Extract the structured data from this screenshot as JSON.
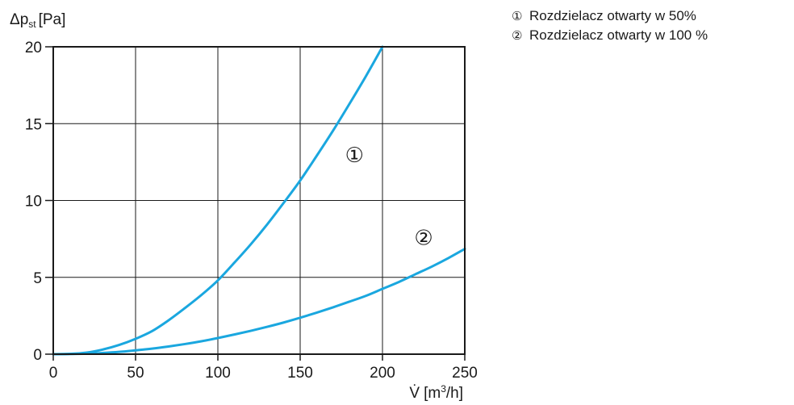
{
  "chart_data": {
    "type": "line",
    "title": "",
    "ylabel_symbol": "Δp",
    "ylabel_sub": "st",
    "ylabel_unit": "[Pa]",
    "xlabel_symbol": "V̇",
    "xlabel_unit_pre": "[m",
    "xlabel_unit_sup": "3",
    "xlabel_unit_post": "/h]",
    "xlim": [
      0,
      250
    ],
    "ylim": [
      0,
      20
    ],
    "xticks": [
      0,
      50,
      100,
      150,
      200,
      250
    ],
    "yticks": [
      0,
      5,
      10,
      15,
      20
    ],
    "grid": true,
    "line_color": "#1aa7df",
    "legend_placement": "top-right",
    "series": [
      {
        "name": "Rozdzielacz otwarty w 50%",
        "marker": "①",
        "label": "①",
        "label_at": [
          183,
          12.5
        ],
        "x": [
          0,
          10,
          20,
          30,
          40,
          50,
          60,
          70,
          80,
          90,
          100,
          110,
          120,
          130,
          140,
          150,
          160,
          170,
          180,
          190,
          200
        ],
        "y": [
          0,
          0.02,
          0.1,
          0.3,
          0.6,
          1.0,
          1.5,
          2.2,
          3.0,
          3.85,
          4.8,
          5.95,
          7.15,
          8.45,
          9.85,
          11.3,
          12.9,
          14.55,
          16.3,
          18.1,
          20.0
        ]
      },
      {
        "name": "Rozdzielacz otwarty w 100 %",
        "marker": "②",
        "label": "②",
        "label_at": [
          225,
          7.1
        ],
        "x": [
          0,
          10,
          20,
          30,
          40,
          50,
          60,
          70,
          80,
          90,
          100,
          110,
          120,
          130,
          140,
          150,
          160,
          170,
          180,
          190,
          200,
          210,
          220,
          230,
          240,
          250
        ],
        "y": [
          0,
          0.01,
          0.03,
          0.08,
          0.15,
          0.25,
          0.36,
          0.5,
          0.66,
          0.84,
          1.05,
          1.28,
          1.52,
          1.78,
          2.06,
          2.37,
          2.7,
          3.05,
          3.42,
          3.8,
          4.25,
          4.7,
          5.2,
          5.7,
          6.25,
          6.85
        ]
      }
    ]
  }
}
